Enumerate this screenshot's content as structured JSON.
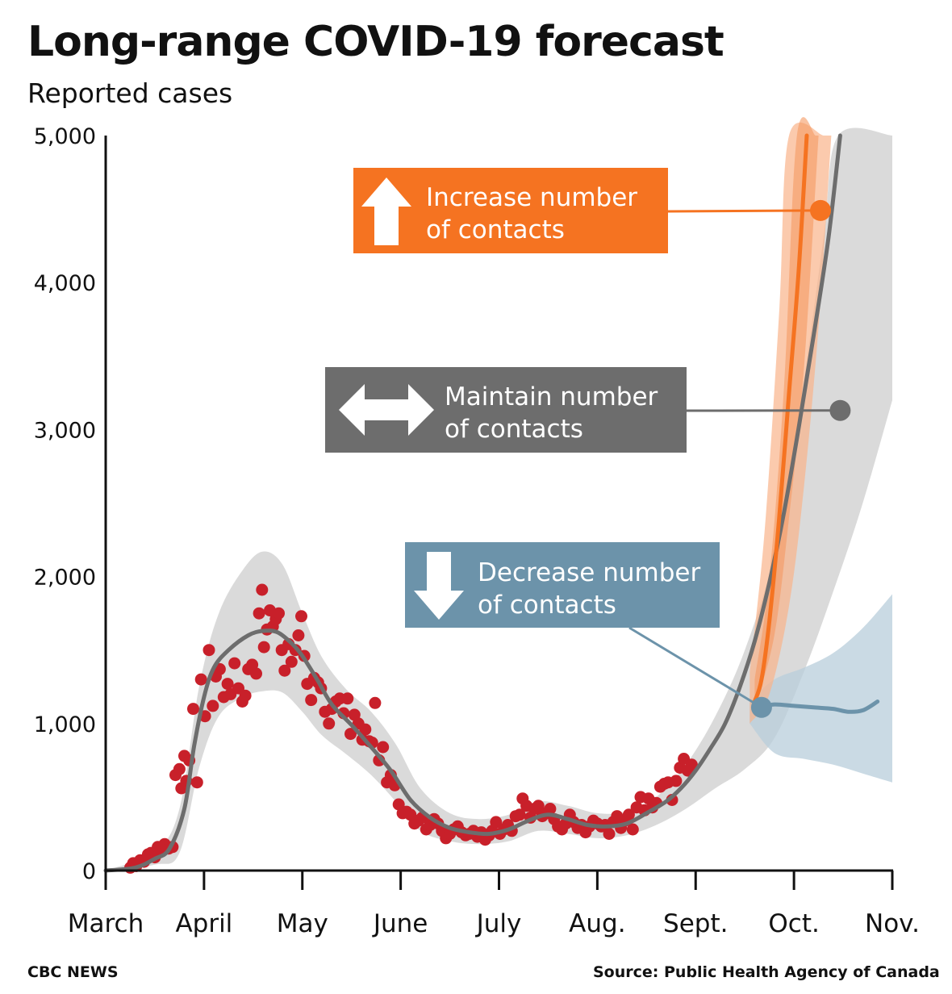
{
  "header": {
    "title": "Long-range COVID-19 forecast",
    "subtitle": "Reported cases"
  },
  "footer": {
    "credit": "CBC NEWS",
    "source": "Source: Public Health Agency of Canada"
  },
  "colors": {
    "observed_points": "#c8202a",
    "fitted_line": "#6d6d6d",
    "confidence_band": "#d6d6d6",
    "increase": "#f57321",
    "maintain": "#6d6d6d",
    "decrease": "#6c93aa"
  },
  "chart_data": {
    "type": "line",
    "title": "Long-range COVID-19 forecast",
    "ylabel": "Reported cases",
    "xlabel": "",
    "ylim": [
      0,
      5000
    ],
    "x_unit": "months since March 1",
    "xlim": [
      0,
      8
    ],
    "x_ticks": [
      {
        "label": "March",
        "x": 0
      },
      {
        "label": "April",
        "x": 1
      },
      {
        "label": "May",
        "x": 2
      },
      {
        "label": "June",
        "x": 3
      },
      {
        "label": "July",
        "x": 4
      },
      {
        "label": "Aug.",
        "x": 5
      },
      {
        "label": "Sept.",
        "x": 6
      },
      {
        "label": "Oct.",
        "x": 7
      },
      {
        "label": "Nov.",
        "x": 8
      }
    ],
    "y_ticks": [
      {
        "label": "0",
        "y": 0
      },
      {
        "label": "1,000",
        "y": 1000
      },
      {
        "label": "2,000",
        "y": 2000
      },
      {
        "label": "3,000",
        "y": 3000
      },
      {
        "label": "4,000",
        "y": 4000
      },
      {
        "label": "5,000",
        "y": 5000
      }
    ],
    "grid": false,
    "legend": "annotation boxes with leader lines",
    "scenarios": [
      {
        "id": "increase",
        "label_line1": "Increase number",
        "label_line2": "of contacts",
        "arrow": "up",
        "marker": [
          7.27,
          4490
        ]
      },
      {
        "id": "maintain",
        "label_line1": "Maintain number",
        "label_line2": "of contacts",
        "arrow": "left-right",
        "marker": [
          7.47,
          3130
        ]
      },
      {
        "id": "decrease",
        "label_line1": "Decrease number",
        "label_line2": "of contacts",
        "arrow": "down",
        "marker": [
          6.67,
          1110
        ]
      }
    ],
    "series": [
      {
        "name": "Reported cases",
        "style": "points",
        "points": [
          [
            0.25,
            20
          ],
          [
            0.28,
            50
          ],
          [
            0.31,
            30
          ],
          [
            0.35,
            70
          ],
          [
            0.39,
            60
          ],
          [
            0.43,
            110
          ],
          [
            0.46,
            120
          ],
          [
            0.5,
            90
          ],
          [
            0.53,
            160
          ],
          [
            0.57,
            140
          ],
          [
            0.6,
            180
          ],
          [
            0.64,
            150
          ],
          [
            0.68,
            160
          ],
          [
            0.71,
            650
          ],
          [
            0.75,
            690
          ],
          [
            0.77,
            560
          ],
          [
            0.8,
            780
          ],
          [
            0.82,
            610
          ],
          [
            0.85,
            750
          ],
          [
            0.89,
            1100
          ],
          [
            0.93,
            600
          ],
          [
            0.97,
            1300
          ],
          [
            1.01,
            1050
          ],
          [
            1.05,
            1500
          ],
          [
            1.09,
            1120
          ],
          [
            1.12,
            1320
          ],
          [
            1.16,
            1370
          ],
          [
            1.2,
            1180
          ],
          [
            1.24,
            1270
          ],
          [
            1.27,
            1200
          ],
          [
            1.31,
            1410
          ],
          [
            1.35,
            1240
          ],
          [
            1.39,
            1150
          ],
          [
            1.42,
            1190
          ],
          [
            1.45,
            1370
          ],
          [
            1.49,
            1400
          ],
          [
            1.53,
            1340
          ],
          [
            1.56,
            1750
          ],
          [
            1.59,
            1910
          ],
          [
            1.61,
            1520
          ],
          [
            1.64,
            1640
          ],
          [
            1.67,
            1770
          ],
          [
            1.7,
            1660
          ],
          [
            1.73,
            1710
          ],
          [
            1.76,
            1750
          ],
          [
            1.79,
            1500
          ],
          [
            1.82,
            1360
          ],
          [
            1.86,
            1540
          ],
          [
            1.89,
            1420
          ],
          [
            1.93,
            1500
          ],
          [
            1.96,
            1600
          ],
          [
            1.99,
            1730
          ],
          [
            2.02,
            1460
          ],
          [
            2.05,
            1270
          ],
          [
            2.09,
            1160
          ],
          [
            2.12,
            1310
          ],
          [
            2.16,
            1280
          ],
          [
            2.19,
            1240
          ],
          [
            2.23,
            1080
          ],
          [
            2.27,
            1000
          ],
          [
            2.3,
            1100
          ],
          [
            2.34,
            1150
          ],
          [
            2.38,
            1170
          ],
          [
            2.42,
            1070
          ],
          [
            2.46,
            1170
          ],
          [
            2.49,
            930
          ],
          [
            2.53,
            1060
          ],
          [
            2.57,
            1000
          ],
          [
            2.61,
            890
          ],
          [
            2.64,
            960
          ],
          [
            2.68,
            880
          ],
          [
            2.71,
            870
          ],
          [
            2.74,
            1140
          ],
          [
            2.78,
            750
          ],
          [
            2.82,
            840
          ],
          [
            2.86,
            600
          ],
          [
            2.9,
            650
          ],
          [
            2.94,
            580
          ],
          [
            2.98,
            450
          ],
          [
            3.02,
            390
          ],
          [
            3.06,
            400
          ],
          [
            3.1,
            380
          ],
          [
            3.14,
            320
          ],
          [
            3.18,
            340
          ],
          [
            3.22,
            360
          ],
          [
            3.26,
            280
          ],
          [
            3.3,
            310
          ],
          [
            3.34,
            350
          ],
          [
            3.38,
            320
          ],
          [
            3.42,
            270
          ],
          [
            3.46,
            220
          ],
          [
            3.5,
            250
          ],
          [
            3.54,
            280
          ],
          [
            3.58,
            300
          ],
          [
            3.62,
            260
          ],
          [
            3.66,
            240
          ],
          [
            3.7,
            250
          ],
          [
            3.74,
            270
          ],
          [
            3.78,
            230
          ],
          [
            3.82,
            260
          ],
          [
            3.86,
            210
          ],
          [
            3.9,
            240
          ],
          [
            3.93,
            270
          ],
          [
            3.97,
            330
          ],
          [
            4.01,
            250
          ],
          [
            4.05,
            280
          ],
          [
            4.09,
            310
          ],
          [
            4.13,
            270
          ],
          [
            4.17,
            370
          ],
          [
            4.21,
            380
          ],
          [
            4.24,
            490
          ],
          [
            4.28,
            440
          ],
          [
            4.32,
            360
          ],
          [
            4.36,
            420
          ],
          [
            4.4,
            440
          ],
          [
            4.44,
            370
          ],
          [
            4.48,
            390
          ],
          [
            4.52,
            420
          ],
          [
            4.56,
            350
          ],
          [
            4.6,
            300
          ],
          [
            4.64,
            280
          ],
          [
            4.68,
            320
          ],
          [
            4.72,
            380
          ],
          [
            4.76,
            330
          ],
          [
            4.8,
            290
          ],
          [
            4.84,
            310
          ],
          [
            4.88,
            260
          ],
          [
            4.92,
            300
          ],
          [
            4.96,
            340
          ],
          [
            5.0,
            320
          ],
          [
            5.04,
            300
          ],
          [
            5.08,
            310
          ],
          [
            5.12,
            250
          ],
          [
            5.16,
            330
          ],
          [
            5.2,
            370
          ],
          [
            5.24,
            290
          ],
          [
            5.28,
            340
          ],
          [
            5.32,
            380
          ],
          [
            5.36,
            280
          ],
          [
            5.4,
            430
          ],
          [
            5.44,
            500
          ],
          [
            5.48,
            410
          ],
          [
            5.52,
            490
          ],
          [
            5.56,
            430
          ],
          [
            5.6,
            460
          ],
          [
            5.64,
            570
          ],
          [
            5.68,
            590
          ],
          [
            5.72,
            600
          ],
          [
            5.76,
            480
          ],
          [
            5.8,
            610
          ],
          [
            5.84,
            700
          ],
          [
            5.88,
            760
          ],
          [
            5.92,
            680
          ],
          [
            5.96,
            720
          ]
        ]
      },
      {
        "name": "Model fit",
        "style": "line",
        "points": [
          [
            0,
            0
          ],
          [
            0.3,
            20
          ],
          [
            0.5,
            80
          ],
          [
            0.65,
            150
          ],
          [
            0.8,
            420
          ],
          [
            0.9,
            850
          ],
          [
            1.0,
            1180
          ],
          [
            1.1,
            1380
          ],
          [
            1.25,
            1500
          ],
          [
            1.45,
            1600
          ],
          [
            1.6,
            1630
          ],
          [
            1.75,
            1620
          ],
          [
            1.9,
            1540
          ],
          [
            2.0,
            1460
          ],
          [
            2.15,
            1300
          ],
          [
            2.3,
            1130
          ],
          [
            2.5,
            990
          ],
          [
            2.7,
            840
          ],
          [
            2.9,
            680
          ],
          [
            3.1,
            480
          ],
          [
            3.3,
            360
          ],
          [
            3.5,
            290
          ],
          [
            3.7,
            260
          ],
          [
            3.9,
            250
          ],
          [
            4.1,
            280
          ],
          [
            4.3,
            340
          ],
          [
            4.5,
            380
          ],
          [
            4.7,
            350
          ],
          [
            4.9,
            310
          ],
          [
            5.1,
            300
          ],
          [
            5.3,
            320
          ],
          [
            5.5,
            390
          ],
          [
            5.7,
            470
          ],
          [
            5.85,
            560
          ],
          [
            6.0,
            680
          ],
          [
            6.15,
            830
          ],
          [
            6.3,
            1000
          ],
          [
            6.45,
            1250
          ],
          [
            6.6,
            1560
          ],
          [
            6.75,
            1960
          ],
          [
            6.9,
            2440
          ],
          [
            7.05,
            3020
          ],
          [
            7.2,
            3640
          ],
          [
            7.35,
            4300
          ],
          [
            7.47,
            5000
          ]
        ]
      },
      {
        "name": "Increase scenario",
        "style": "line",
        "points": [
          [
            6.6,
            1150
          ],
          [
            6.67,
            1300
          ],
          [
            6.75,
            1700
          ],
          [
            6.85,
            2400
          ],
          [
            6.95,
            3250
          ],
          [
            7.05,
            4100
          ],
          [
            7.13,
            5000
          ]
        ]
      },
      {
        "name": "Decrease scenario",
        "style": "line",
        "points": [
          [
            6.64,
            1110
          ],
          [
            6.8,
            1130
          ],
          [
            7.0,
            1120
          ],
          [
            7.2,
            1110
          ],
          [
            7.4,
            1100
          ],
          [
            7.55,
            1080
          ],
          [
            7.7,
            1090
          ],
          [
            7.85,
            1150
          ]
        ]
      }
    ]
  }
}
